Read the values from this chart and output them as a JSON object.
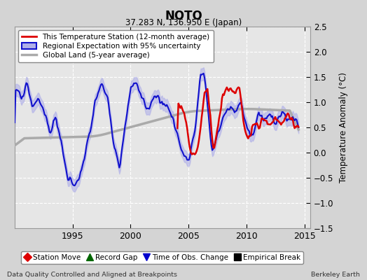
{
  "title": "NOTO",
  "subtitle": "37.283 N, 136.950 E (Japan)",
  "ylabel": "Temperature Anomaly (°C)",
  "xlabel_left": "Data Quality Controlled and Aligned at Breakpoints",
  "xlabel_right": "Berkeley Earth",
  "ylim": [
    -1.5,
    2.5
  ],
  "xlim": [
    1990.0,
    2015.5
  ],
  "yticks": [
    -1.5,
    -1.0,
    -0.5,
    0.0,
    0.5,
    1.0,
    1.5,
    2.0,
    2.5
  ],
  "xticks": [
    1995,
    2000,
    2005,
    2010,
    2015
  ],
  "bg_color": "#d4d4d4",
  "plot_bg_color": "#e6e6e6",
  "grid_color": "#ffffff",
  "red_line_color": "#dd0000",
  "blue_line_color": "#1111cc",
  "blue_fill_color": "#b0b0e8",
  "gray_line_color": "#aaaaaa",
  "legend_items": [
    {
      "label": "This Temperature Station (12-month average)",
      "color": "#dd0000",
      "lw": 2.0
    },
    {
      "label": "Regional Expectation with 95% uncertainty",
      "color": "#1111cc",
      "lw": 2.0
    },
    {
      "label": "Global Land (5-year average)",
      "color": "#aaaaaa",
      "lw": 2.5
    }
  ],
  "bottom_legend": [
    {
      "label": "Station Move",
      "color": "#dd0000",
      "marker": "D"
    },
    {
      "label": "Record Gap",
      "color": "#006600",
      "marker": "^"
    },
    {
      "label": "Time of Obs. Change",
      "color": "#0000cc",
      "marker": "v"
    },
    {
      "label": "Empirical Break",
      "color": "#000000",
      "marker": "s"
    }
  ]
}
